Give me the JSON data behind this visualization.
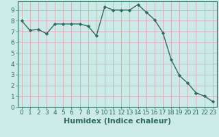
{
  "x": [
    0,
    1,
    2,
    3,
    4,
    5,
    6,
    7,
    8,
    9,
    10,
    11,
    12,
    13,
    14,
    15,
    16,
    17,
    18,
    19,
    20,
    21,
    22,
    23
  ],
  "y": [
    8.0,
    7.1,
    7.2,
    6.8,
    7.7,
    7.7,
    7.7,
    7.7,
    7.5,
    6.6,
    9.3,
    9.0,
    9.0,
    9.0,
    9.5,
    8.8,
    8.1,
    6.9,
    4.4,
    2.9,
    2.2,
    1.3,
    1.0,
    0.5
  ],
  "line_color": "#2e6b5e",
  "marker": "D",
  "markersize": 2.2,
  "linewidth": 1.0,
  "bg_color": "#cceae7",
  "grid_color_minor": "#d4a0a0",
  "grid_color_major": "#d4a0a0",
  "xlabel": "Humidex (Indice chaleur)",
  "xlabel_fontsize": 8,
  "xlabel_color": "#2e6b5e",
  "xlabel_bold": true,
  "ylim": [
    0,
    9.8
  ],
  "xlim": [
    -0.5,
    23.5
  ],
  "yticks": [
    0,
    1,
    2,
    3,
    4,
    5,
    6,
    7,
    8,
    9
  ],
  "xticks": [
    0,
    1,
    2,
    3,
    4,
    5,
    6,
    7,
    8,
    9,
    10,
    11,
    12,
    13,
    14,
    15,
    16,
    17,
    18,
    19,
    20,
    21,
    22,
    23
  ],
  "tick_fontsize": 6.5,
  "tick_color": "#2e6b5e",
  "spine_color": "#2e6b5e"
}
